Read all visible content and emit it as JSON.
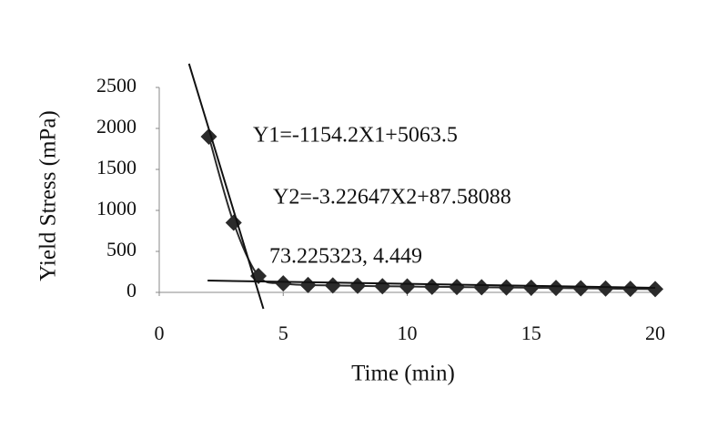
{
  "chart_data": {
    "type": "line",
    "x_label": "Time (min)",
    "y_label": "Yield Stress (mPa)",
    "xlim": [
      0,
      20
    ],
    "xticks": [
      0,
      5,
      10,
      15,
      20
    ],
    "ylim": [
      0,
      2500
    ],
    "yticks": [
      0,
      500,
      1000,
      1500,
      2000,
      2500
    ],
    "series": [
      {
        "name": "Yield stress",
        "color": "#2b2b2b",
        "marker": "diamond",
        "smooth": true,
        "x": [
          2,
          3,
          4,
          5,
          6,
          7,
          8,
          9,
          10,
          11,
          12,
          13,
          14,
          15,
          16,
          17,
          18,
          19,
          20
        ],
        "values": [
          1900,
          850,
          200,
          110,
          90,
          85,
          80,
          75,
          72,
          68,
          65,
          62,
          60,
          57,
          54,
          50,
          47,
          43,
          40
        ]
      },
      {
        "name": "Y1",
        "color": "#111111",
        "marker": "none",
        "x": [
          1.2,
          4.2
        ],
        "values": [
          2790,
          -200
        ]
      },
      {
        "name": "Y2",
        "color": "#111111",
        "marker": "none",
        "x": [
          1.95,
          20
        ],
        "values": [
          144,
          55
        ]
      }
    ],
    "annotations": [
      "Y1=-1154.2X1+5063.5",
      "Y2=-3.22647X2+87.58088",
      "73.225323, 4.449"
    ]
  }
}
